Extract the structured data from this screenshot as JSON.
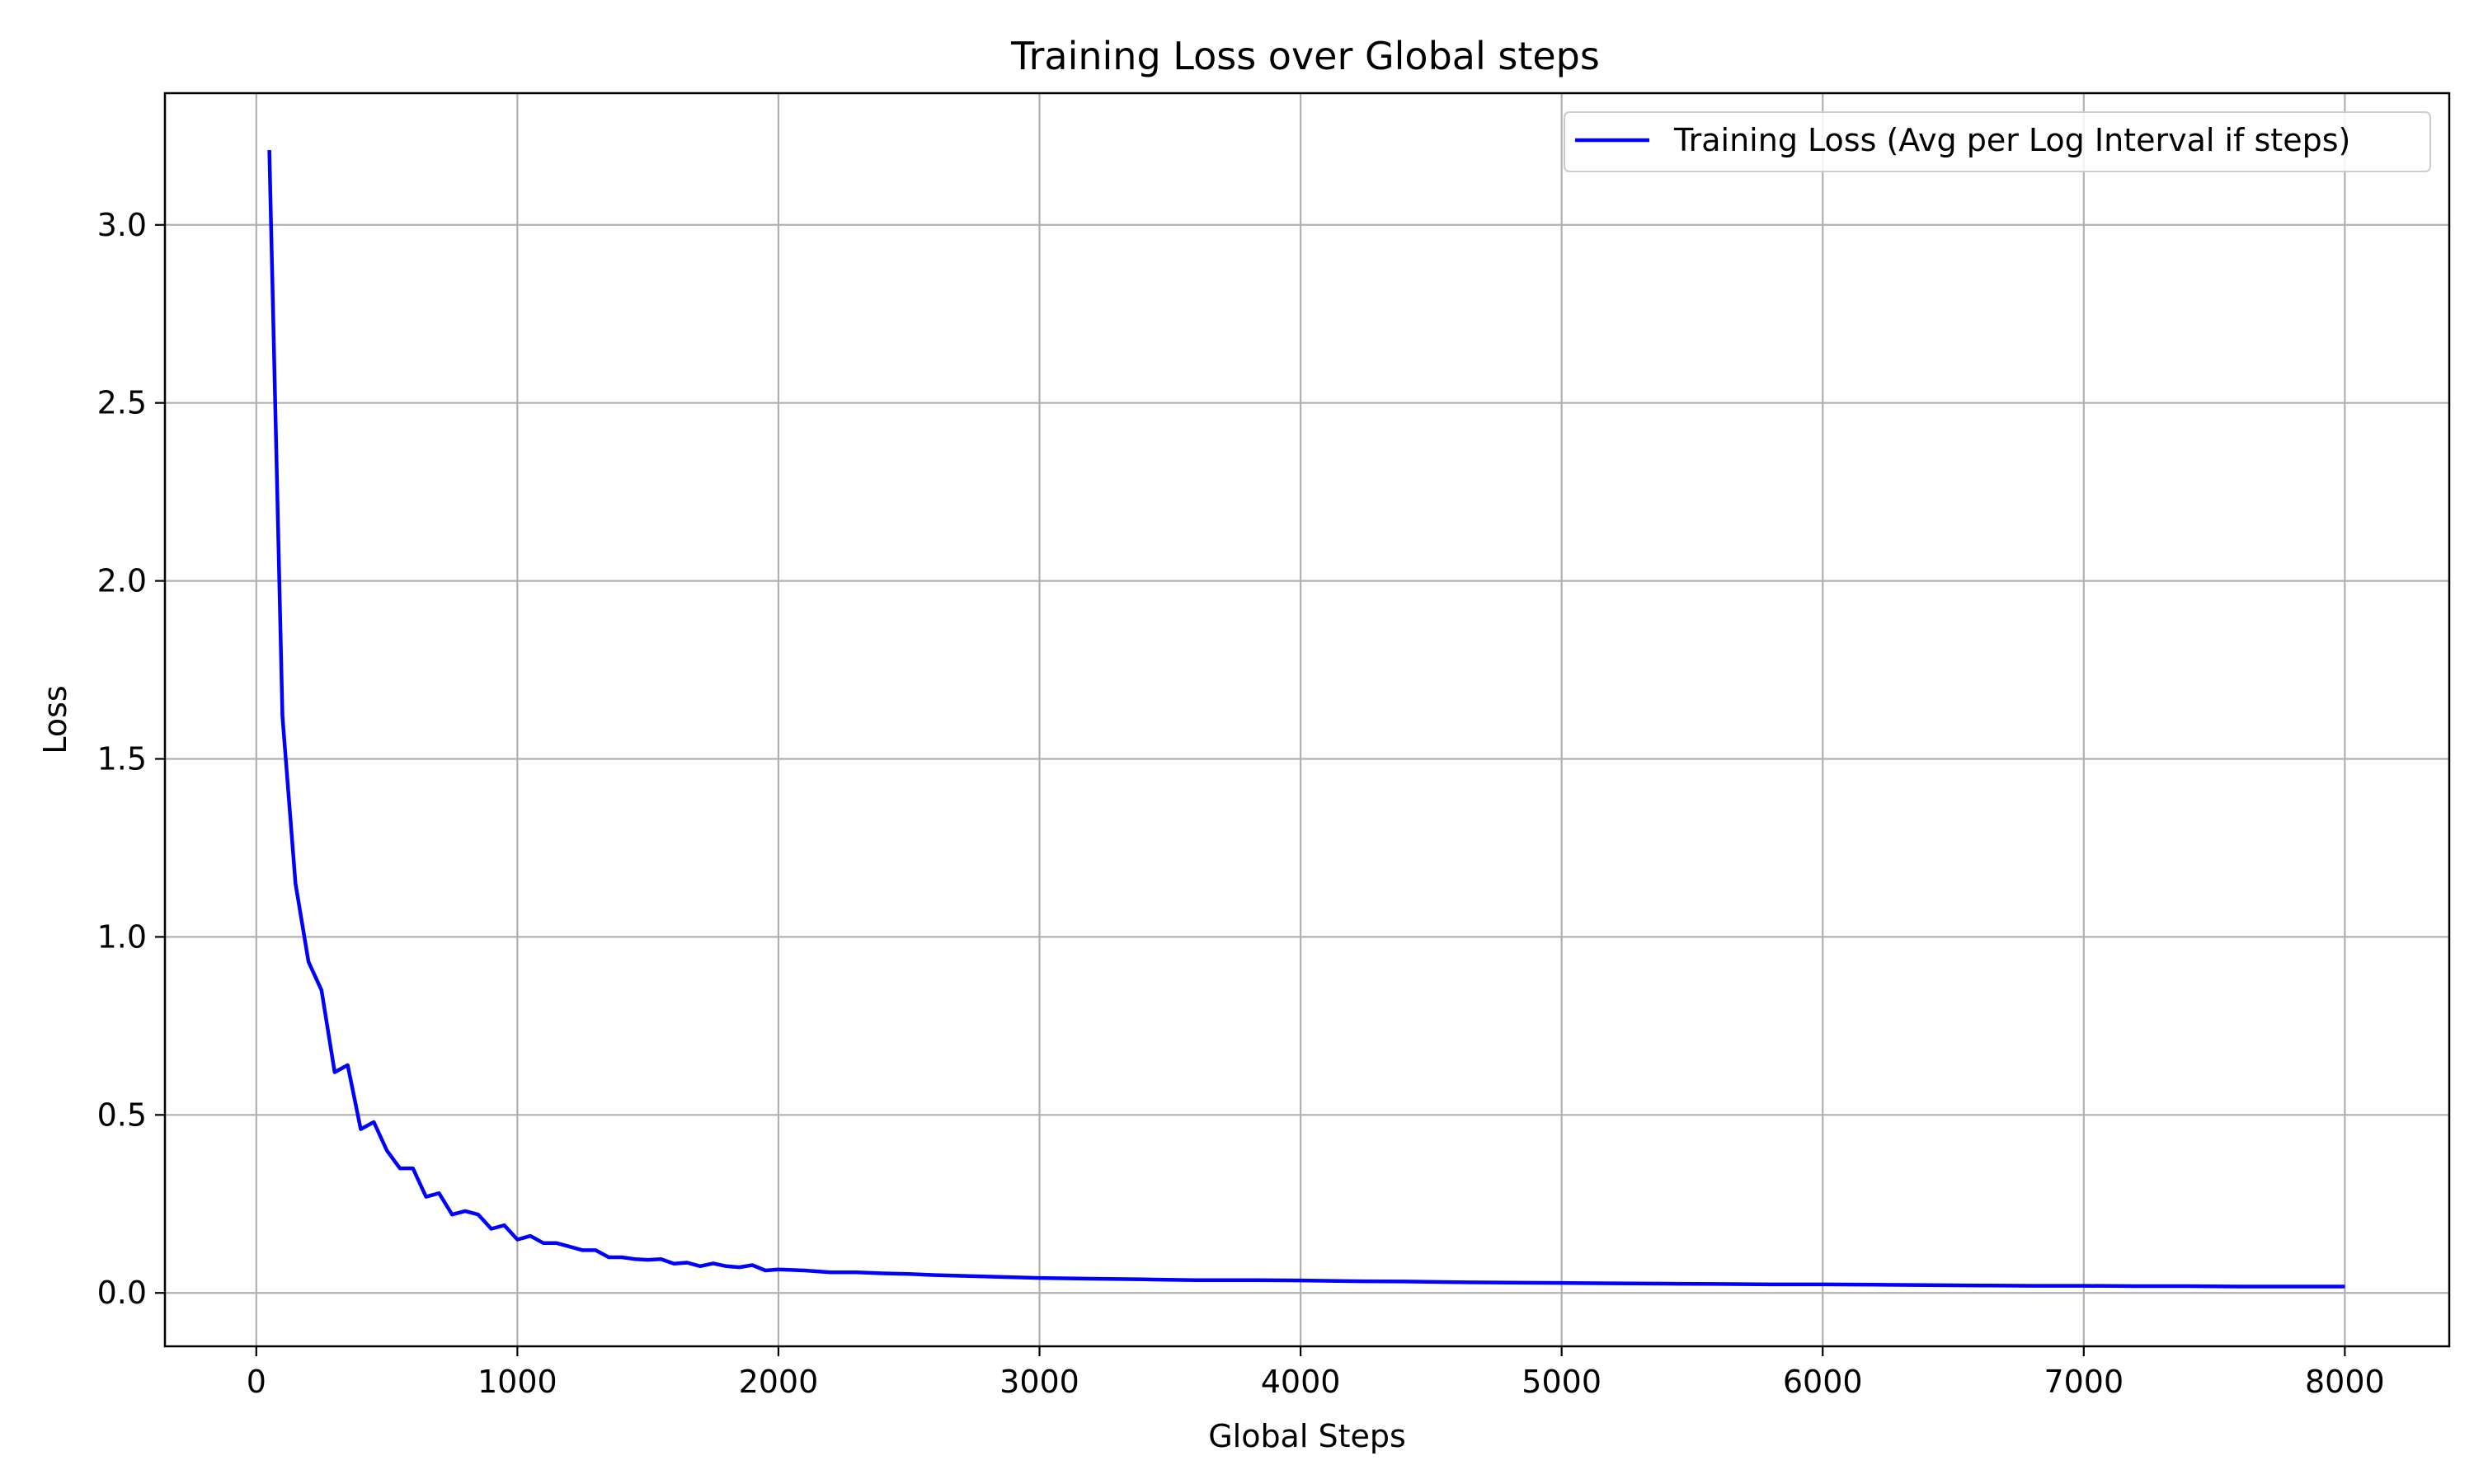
{
  "chart_data": {
    "type": "line",
    "title": "Training Loss over Global steps",
    "xlabel": "Global Steps",
    "ylabel": "Loss",
    "xlim": [
      -350,
      8400
    ],
    "ylim": [
      -0.15,
      3.37
    ],
    "xticks": [
      0,
      1000,
      2000,
      3000,
      4000,
      5000,
      6000,
      7000,
      8000
    ],
    "yticks": [
      0.0,
      0.5,
      1.0,
      1.5,
      2.0,
      2.5,
      3.0
    ],
    "grid": true,
    "legend_position": "top-right",
    "series": [
      {
        "name": "Training Loss (Avg per Log Interval if steps)",
        "color": "#0000ff",
        "x": [
          50,
          100,
          150,
          200,
          250,
          300,
          350,
          400,
          450,
          500,
          550,
          600,
          650,
          700,
          750,
          800,
          850,
          900,
          950,
          1000,
          1050,
          1100,
          1150,
          1200,
          1250,
          1300,
          1350,
          1400,
          1450,
          1500,
          1550,
          1600,
          1650,
          1700,
          1750,
          1800,
          1850,
          1900,
          1950,
          2000,
          2100,
          2200,
          2300,
          2400,
          2500,
          2600,
          2700,
          2800,
          2900,
          3000,
          3200,
          3400,
          3600,
          3800,
          4000,
          4200,
          4400,
          4600,
          4800,
          5000,
          5200,
          5400,
          5600,
          5800,
          6000,
          6200,
          6400,
          6600,
          6800,
          7000,
          7200,
          7400,
          7600,
          7800,
          8000
        ],
        "y": [
          3.21,
          1.62,
          1.15,
          0.93,
          0.85,
          0.62,
          0.64,
          0.46,
          0.48,
          0.4,
          0.35,
          0.35,
          0.27,
          0.28,
          0.22,
          0.23,
          0.22,
          0.18,
          0.19,
          0.15,
          0.16,
          0.14,
          0.14,
          0.13,
          0.12,
          0.12,
          0.1,
          0.1,
          0.095,
          0.093,
          0.095,
          0.082,
          0.085,
          0.075,
          0.083,
          0.075,
          0.072,
          0.078,
          0.063,
          0.066,
          0.063,
          0.058,
          0.058,
          0.055,
          0.053,
          0.05,
          0.048,
          0.046,
          0.044,
          0.042,
          0.04,
          0.038,
          0.036,
          0.036,
          0.035,
          0.033,
          0.032,
          0.03,
          0.029,
          0.028,
          0.027,
          0.026,
          0.025,
          0.024,
          0.024,
          0.023,
          0.022,
          0.021,
          0.02,
          0.02,
          0.019,
          0.019,
          0.018,
          0.018,
          0.018
        ]
      }
    ]
  }
}
